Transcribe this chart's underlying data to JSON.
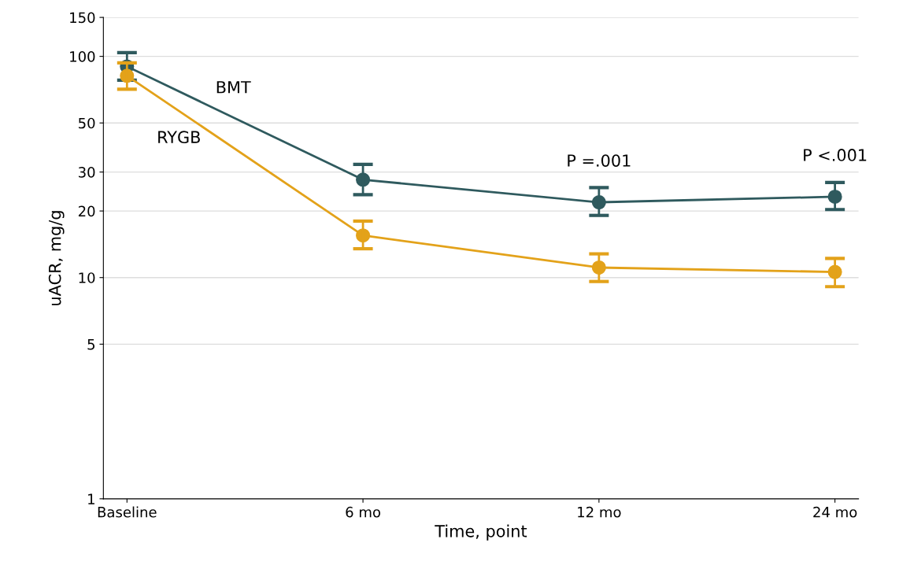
{
  "chart_data": {
    "type": "line",
    "xlabel": "Time, point",
    "ylabel": "uACR, mg/g",
    "categories": [
      "Baseline",
      "6 mo",
      "12 mo",
      "24 mo"
    ],
    "series": [
      {
        "name": "BMT",
        "color": "#2f5a5e",
        "values": [
          90,
          27.7,
          21.9,
          23.2
        ],
        "errors": [
          [
            78,
            104
          ],
          [
            23.7,
            32.5
          ],
          [
            19.1,
            25.5
          ],
          [
            20.3,
            26.9
          ]
        ]
      },
      {
        "name": "RYGB",
        "color": "#e3a21a",
        "values": [
          81.7,
          15.5,
          11.1,
          10.6
        ],
        "errors": [
          [
            71,
            93.5
          ],
          [
            13.5,
            18.0
          ],
          [
            9.6,
            12.8
          ],
          [
            9.1,
            12.2
          ]
        ]
      }
    ],
    "log": "y",
    "ylim": [
      1,
      150
    ],
    "yticks": [
      1,
      5,
      10,
      20,
      30,
      50,
      100,
      150
    ],
    "grid": "y",
    "marker": "circle",
    "line_style": "solid",
    "legend": false,
    "annotations": [
      "P =.001",
      "P <.001"
    ]
  }
}
